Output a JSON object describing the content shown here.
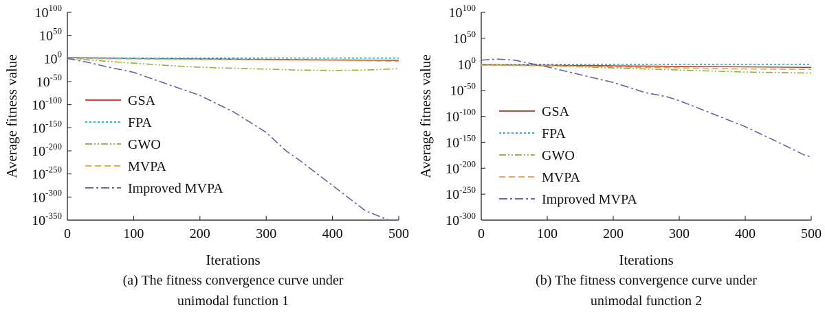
{
  "chart_data": [
    {
      "type": "line",
      "panel": "a",
      "caption_line1": "(a) The fitness convergence curve under",
      "caption_line2": "unimodal function 1",
      "xlabel": "Iterations",
      "ylabel": "Average fitness value",
      "xlim": [
        0,
        500
      ],
      "ylim_exponent": [
        -350,
        100
      ],
      "y_scale": "log10",
      "x_ticks": [
        "0",
        "100",
        "200",
        "300",
        "400",
        "500"
      ],
      "y_tick_base": "10",
      "y_tick_exponents": [
        "100",
        "50",
        "0",
        "-50",
        "-100",
        "-150",
        "-200",
        "-250",
        "-300",
        "-350"
      ],
      "legend_position": "lower-left",
      "series": [
        {
          "name": "GSA",
          "color": "#c0392b",
          "style": "solid",
          "x": [
            0,
            100,
            200,
            300,
            400,
            500
          ],
          "log10_y": [
            2,
            0,
            -1,
            -2,
            -3,
            -4
          ]
        },
        {
          "name": "FPA",
          "color": "#2aa7c7",
          "style": "dotted",
          "x": [
            0,
            100,
            200,
            300,
            400,
            500
          ],
          "log10_y": [
            2,
            1,
            1,
            1,
            1,
            1
          ]
        },
        {
          "name": "GWO",
          "color": "#8fb339",
          "style": "dashdotdot",
          "x": [
            0,
            50,
            100,
            150,
            200,
            250,
            300,
            350,
            400,
            450,
            500
          ],
          "log10_y": [
            0,
            -5,
            -10,
            -15,
            -19,
            -21,
            -23,
            -25,
            -26,
            -25,
            -22
          ]
        },
        {
          "name": "MVPA",
          "color": "#f0a04b",
          "style": "dashed",
          "x": [
            0,
            100,
            200,
            300,
            400,
            500
          ],
          "log10_y": [
            0,
            -1,
            -2,
            -3,
            -4,
            -6
          ]
        },
        {
          "name": "Improved MVPA",
          "color": "#6a5fa8",
          "style": "dashdot",
          "x": [
            0,
            30,
            60,
            100,
            150,
            180,
            200,
            250,
            300,
            330,
            350,
            400,
            450,
            485
          ],
          "log10_y": [
            0,
            -8,
            -18,
            -30,
            -55,
            -70,
            -80,
            -115,
            -160,
            -200,
            -220,
            -275,
            -330,
            -350
          ]
        }
      ]
    },
    {
      "type": "line",
      "panel": "b",
      "caption_line1": "(b) The fitness convergence curve under",
      "caption_line2": "unimodal function 2",
      "xlabel": "Iterations",
      "ylabel": "Average fitness value",
      "xlim": [
        0,
        500
      ],
      "ylim_exponent": [
        -300,
        100
      ],
      "y_scale": "log10",
      "x_ticks": [
        "0",
        "100",
        "200",
        "300",
        "400",
        "500"
      ],
      "y_tick_base": "10",
      "y_tick_exponents": [
        "100",
        "50",
        "0",
        "-50",
        "-100",
        "-150",
        "-200",
        "-250",
        "-300"
      ],
      "legend_position": "lower-left",
      "series": [
        {
          "name": "GSA",
          "color": "#c0392b",
          "style": "solid",
          "x": [
            0,
            100,
            200,
            300,
            400,
            500
          ],
          "log10_y": [
            -1,
            -2,
            -3,
            -4,
            -5,
            -6
          ]
        },
        {
          "name": "FPA",
          "color": "#2aa7c7",
          "style": "dotted",
          "x": [
            0,
            100,
            200,
            300,
            400,
            500
          ],
          "log10_y": [
            0,
            0,
            0,
            0,
            0,
            0
          ]
        },
        {
          "name": "GWO",
          "color": "#8fb339",
          "style": "dashdotdot",
          "x": [
            0,
            100,
            200,
            300,
            400,
            500
          ],
          "log10_y": [
            -1,
            -3,
            -7,
            -11,
            -15,
            -17
          ]
        },
        {
          "name": "MVPA",
          "color": "#f0a04b",
          "style": "dashed",
          "x": [
            0,
            100,
            200,
            300,
            400,
            500
          ],
          "log10_y": [
            -2,
            -3,
            -5,
            -7,
            -9,
            -10
          ]
        },
        {
          "name": "Improved MVPA",
          "color": "#6a5fa8",
          "style": "dashdot",
          "x": [
            0,
            25,
            50,
            100,
            150,
            200,
            250,
            280,
            300,
            350,
            400,
            450,
            490,
            500
          ],
          "log10_y": [
            8,
            10,
            8,
            -5,
            -20,
            -35,
            -55,
            -62,
            -70,
            -95,
            -120,
            -150,
            -175,
            -178
          ]
        }
      ]
    }
  ]
}
